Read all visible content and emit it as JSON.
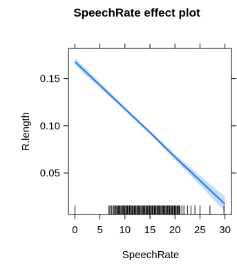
{
  "chart_data": {
    "type": "line",
    "title": "SpeechRate effect plot",
    "xlabel": "SpeechRate",
    "ylabel": "R.length",
    "xlim": [
      -1.3,
      31.3
    ],
    "ylim": [
      0.006,
      0.182
    ],
    "x_ticks": [
      0,
      5,
      10,
      15,
      20,
      25,
      30
    ],
    "y_ticks": [
      0.05,
      0.1,
      0.15
    ],
    "x_tick_labels": [
      "0",
      "5",
      "10",
      "15",
      "20",
      "25",
      "30"
    ],
    "y_tick_labels": [
      "0.05",
      "0.10",
      "0.15"
    ],
    "series": [
      {
        "x": [
          0,
          5,
          10,
          15,
          20,
          25,
          30
        ],
        "y": [
          0.168,
          0.143,
          0.118,
          0.093,
          0.067,
          0.042,
          0.017
        ],
        "lower": [
          0.164,
          0.14,
          0.116,
          0.091,
          0.064,
          0.037,
          0.009
        ],
        "upper": [
          0.172,
          0.146,
          0.12,
          0.095,
          0.07,
          0.047,
          0.025
        ]
      }
    ],
    "rug_x": [
      0,
      6.8,
      7.0,
      7.3,
      7.6,
      7.8,
      8.0,
      8.2,
      8.4,
      8.5,
      8.7,
      8.9,
      9.0,
      9.2,
      9.4,
      9.5,
      9.7,
      9.9,
      10.0,
      10.2,
      10.4,
      10.5,
      10.7,
      10.9,
      11.0,
      11.2,
      11.4,
      11.5,
      11.7,
      11.9,
      12.0,
      12.2,
      12.4,
      12.5,
      12.7,
      12.9,
      13.0,
      13.2,
      13.4,
      13.5,
      13.7,
      13.9,
      14.0,
      14.2,
      14.4,
      14.5,
      14.7,
      14.9,
      15.0,
      15.2,
      15.4,
      15.5,
      15.7,
      15.9,
      16.0,
      16.2,
      16.4,
      16.5,
      16.7,
      16.9,
      17.0,
      17.2,
      17.4,
      17.5,
      17.7,
      17.9,
      18.0,
      18.2,
      18.4,
      18.5,
      18.7,
      18.9,
      19.0,
      19.2,
      19.4,
      19.5,
      19.7,
      19.9,
      20.0,
      20.2,
      20.4,
      20.5,
      20.7,
      20.9,
      21.0,
      21.4,
      21.8,
      22.5,
      23.2,
      24.0,
      25.0,
      27.0,
      29.8
    ],
    "colors": {
      "line": "#1a75ff",
      "band": "#b8d7f5",
      "axis": "#000000"
    },
    "grid": false,
    "legend": "none"
  }
}
